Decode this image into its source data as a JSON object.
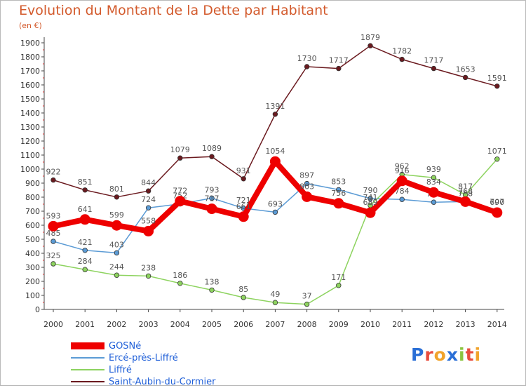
{
  "title": "Evolution du Montant de la Dette par Habitant",
  "unit": "(en €)",
  "logo": "Proxiti",
  "chart_data": {
    "type": "line",
    "title": "Evolution du Montant de la Dette par Habitant",
    "ylabel": "(en €)",
    "xlabel": "",
    "ylim": [
      0,
      1900
    ],
    "ytick_step": 100,
    "grid": false,
    "legend_position": "bottom-left",
    "categories": [
      "2000",
      "2001",
      "2002",
      "2003",
      "2004",
      "2005",
      "2006",
      "2007",
      "2008",
      "2009",
      "2010",
      "2011",
      "2012",
      "2013",
      "2014"
    ],
    "series": [
      {
        "name": "Saint-Aubin-du-Cormier",
        "color": "#6b1a1f",
        "values": [
          922,
          851,
          801,
          844,
          1079,
          1089,
          931,
          1391,
          1730,
          1717,
          1879,
          1782,
          1717,
          1653,
          1591
        ],
        "labels": [
          "922",
          "851",
          "801",
          "844",
          "1079",
          "1089",
          "931",
          "1391",
          "1730",
          "1717",
          "1879",
          "1782",
          "1717",
          "1653",
          "1591"
        ]
      },
      {
        "name": "Ercé-près-Liffré",
        "color": "#5b9bd5",
        "values": [
          485,
          421,
          403,
          724,
          752,
          793,
          721,
          693,
          897,
          853,
          790,
          784,
          764,
          768,
          707
        ],
        "labels": [
          "485",
          "421",
          "403",
          "724",
          "752",
          "793",
          "721",
          "693",
          "897",
          "853",
          "790",
          "784",
          "764",
          "768",
          "707"
        ]
      },
      {
        "name": "Liffré",
        "color": "#8dd35f",
        "values": [
          325,
          284,
          244,
          238,
          186,
          138,
          85,
          49,
          37,
          171,
          741,
          962,
          939,
          817,
          1071
        ],
        "labels": [
          "325",
          "284",
          "244",
          "238",
          "186",
          "138",
          "85",
          "49",
          "37",
          "171",
          "741",
          "962",
          "939",
          "817",
          "1071"
        ]
      },
      {
        "name": "GOSNé",
        "color": "#ee0000",
        "values": [
          593,
          641,
          599,
          558,
          772,
          717,
          661,
          1054,
          803,
          756,
          689,
          916,
          834,
          768,
          690
        ],
        "labels": [
          "593",
          "641",
          "599",
          "558",
          "772",
          "717",
          "661",
          "1054",
          "803",
          "756",
          "689",
          "916",
          "834",
          "768",
          "690"
        ]
      }
    ]
  },
  "legend": [
    {
      "label": "GOSNé",
      "color": "#ee0000",
      "thickness": 10
    },
    {
      "label": "Ercé-près-Liffré",
      "color": "#5b9bd5",
      "thickness": 2
    },
    {
      "label": "Liffré",
      "color": "#8dd35f",
      "thickness": 2
    },
    {
      "label": "Saint-Aubin-du-Cormier",
      "color": "#6b1a1f",
      "thickness": 2
    }
  ]
}
